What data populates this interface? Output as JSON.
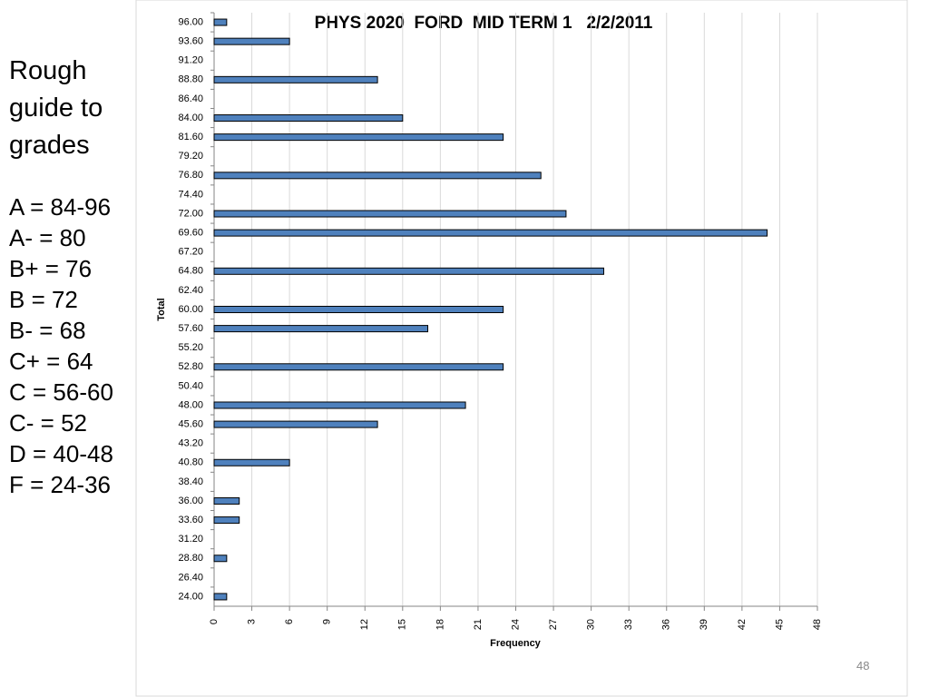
{
  "chart_data": {
    "type": "bar",
    "orientation": "horizontal",
    "title": "PHYS 2020  FORD  MID TERM 1   2/2/2011",
    "x_label": "Frequency",
    "y_label": "Total",
    "categories": [
      "96.00",
      "93.60",
      "91.20",
      "88.80",
      "86.40",
      "84.00",
      "81.60",
      "79.20",
      "76.80",
      "74.40",
      "72.00",
      "69.60",
      "67.20",
      "64.80",
      "62.40",
      "60.00",
      "57.60",
      "55.20",
      "52.80",
      "50.40",
      "48.00",
      "45.60",
      "43.20",
      "40.80",
      "38.40",
      "36.00",
      "33.60",
      "31.20",
      "28.80",
      "26.40",
      "24.00"
    ],
    "values": [
      1,
      6,
      0,
      13,
      0,
      15,
      23,
      0,
      26,
      0,
      28,
      44,
      0,
      31,
      0,
      23,
      17,
      0,
      23,
      0,
      20,
      13,
      0,
      6,
      0,
      2,
      2,
      0,
      1,
      0,
      1
    ],
    "color": "#4f81bd",
    "xlim": [
      0,
      48
    ],
    "xticks": [
      0,
      3,
      6,
      9,
      12,
      15,
      18,
      21,
      24,
      27,
      30,
      33,
      36,
      39,
      42,
      45,
      48
    ],
    "grid": true
  },
  "sidebar": {
    "heading": "Rough guide to grades",
    "lines": [
      "A = 84-96",
      "A- = 80",
      "B+ = 76",
      "B = 72",
      "B- = 68",
      "C+ = 64",
      "C = 56-60",
      "C- = 52",
      "D = 40-48",
      "F = 24-36"
    ]
  },
  "page_number": "48"
}
